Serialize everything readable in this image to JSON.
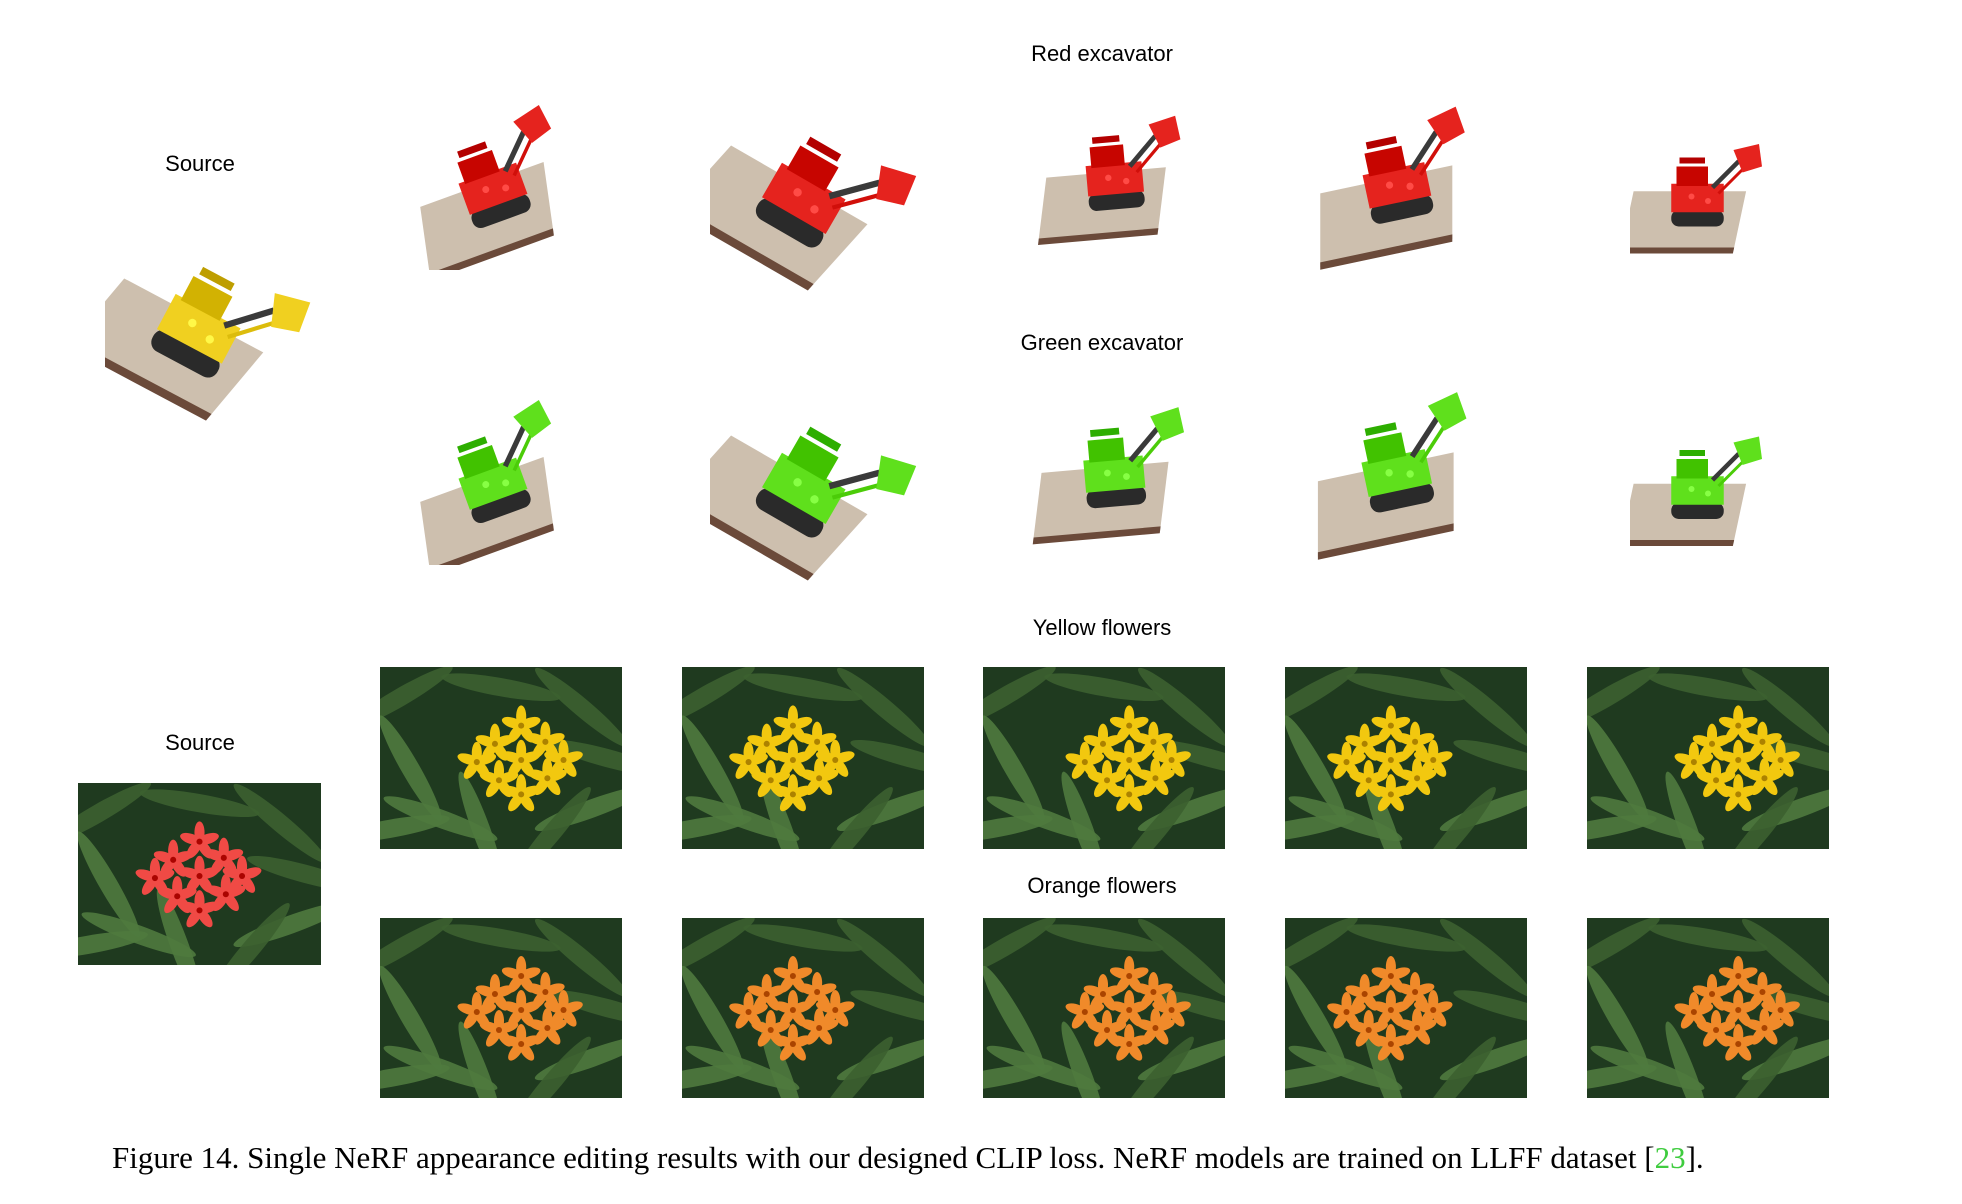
{
  "rows": [
    {
      "key": "red_excavator",
      "label": "Red excavator",
      "accent": "#e5231e"
    },
    {
      "key": "green_excavator",
      "label": "Green excavator",
      "accent": "#5fe01c"
    },
    {
      "key": "yellow_flowers",
      "label": "Yellow flowers",
      "accent": "#f2c80f"
    },
    {
      "key": "orange_flowers",
      "label": "Orange flowers",
      "accent": "#f08a2a"
    }
  ],
  "source_labels": [
    "Source",
    "Source"
  ],
  "source_colors": {
    "excavator": "#f0d020",
    "flowers": "#f04a45"
  },
  "caption": {
    "prefix": "Figure 14. Single NeRF appearance editing results with our designed CLIP loss. NeRF models are trained on LLFF dataset [",
    "ref": "23",
    "suffix": "]."
  },
  "colors": {
    "ref_link": "#3fcc3f",
    "foliage_dark": "#1f3a1f",
    "foliage_light": "#4f7a3e",
    "baseplate": "#cdbfae"
  }
}
